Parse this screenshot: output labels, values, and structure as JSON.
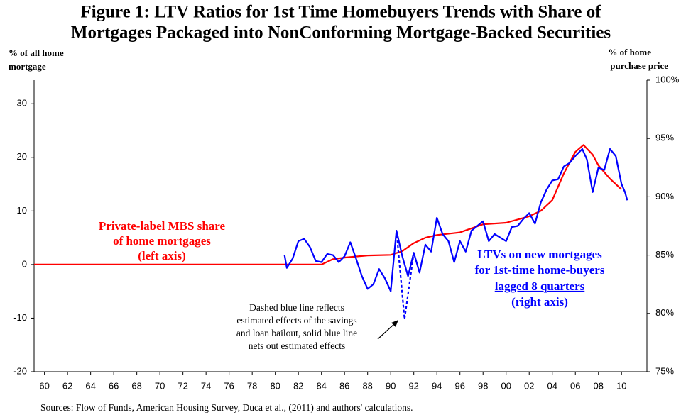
{
  "chart_data": {
    "type": "line",
    "title": [
      "Figure 1: LTV Ratios for 1st Time Homebuyers Trends with Share of",
      "Mortgages Packaged into NonConforming Mortgage-Backed Securities"
    ],
    "y_label": [
      "% of all home",
      "mortgage"
    ],
    "y2_label": [
      "% of home",
      "purchase price"
    ],
    "xlim": [
      1959.1,
      2012.2
    ],
    "xticks": [
      {
        "value": 1960,
        "label": "60"
      },
      {
        "value": 1962,
        "label": "62"
      },
      {
        "value": 1964,
        "label": "64"
      },
      {
        "value": 1966,
        "label": "66"
      },
      {
        "value": 1968,
        "label": "68"
      },
      {
        "value": 1970,
        "label": "70"
      },
      {
        "value": 1972,
        "label": "72"
      },
      {
        "value": 1974,
        "label": "74"
      },
      {
        "value": 1976,
        "label": "76"
      },
      {
        "value": 1978,
        "label": "78"
      },
      {
        "value": 1980,
        "label": "80"
      },
      {
        "value": 1982,
        "label": "82"
      },
      {
        "value": 1984,
        "label": "84"
      },
      {
        "value": 1986,
        "label": "86"
      },
      {
        "value": 1988,
        "label": "88"
      },
      {
        "value": 1990,
        "label": "90"
      },
      {
        "value": 1992,
        "label": "92"
      },
      {
        "value": 1994,
        "label": "94"
      },
      {
        "value": 1996,
        "label": "96"
      },
      {
        "value": 1998,
        "label": "98"
      },
      {
        "value": 2000,
        "label": "00"
      },
      {
        "value": 2002,
        "label": "02"
      },
      {
        "value": 2004,
        "label": "04"
      },
      {
        "value": 2006,
        "label": "06"
      },
      {
        "value": 2008,
        "label": "08"
      },
      {
        "value": 2010,
        "label": "10"
      }
    ],
    "ylim": [
      -20,
      34.4
    ],
    "yticks": [
      -20,
      -10,
      0,
      10,
      20,
      30
    ],
    "y2lim": [
      75,
      100
    ],
    "y2ticks": [
      {
        "value": 75,
        "label": "75%"
      },
      {
        "value": 80,
        "label": "80%"
      },
      {
        "value": 85,
        "label": "85%"
      },
      {
        "value": 90,
        "label": "90%"
      },
      {
        "value": 95,
        "label": "95%"
      },
      {
        "value": 100,
        "label": "100%"
      }
    ],
    "series": [
      {
        "color": "#ff0000",
        "axis": "y",
        "x": [
          1959.1,
          1984,
          1985,
          1986,
          1988,
          1990,
          1991,
          1992,
          1993,
          1994,
          1996,
          1998,
          2000,
          2002,
          2003,
          2004,
          2005,
          2006,
          2006.7,
          2007.5,
          2008,
          2009,
          2010
        ],
        "values": [
          0,
          0,
          1.0,
          1.3,
          1.7,
          1.8,
          2.5,
          4,
          5,
          5.5,
          6,
          7.5,
          7.8,
          9,
          10,
          12,
          17,
          21,
          22.3,
          20.5,
          18.5,
          16,
          14
        ]
      },
      {
        "color": "#0000ff",
        "axis": "y2",
        "x": [
          1980.8,
          1981,
          1981.5,
          1982,
          1982.5,
          1983,
          1983.5,
          1984,
          1984.5,
          1985,
          1985.5,
          1986,
          1986.5,
          1987,
          1987.5,
          1988,
          1988.5,
          1989,
          1989.5,
          1990,
          1990.5,
          1991,
          1991.5,
          1992,
          1992.5,
          1993,
          1993.5,
          1994,
          1994.5,
          1995,
          1995.5,
          1996,
          1996.5,
          1997,
          1997.5,
          1998,
          1998.5,
          1999,
          2000,
          2000.5,
          2001,
          2001.5,
          2002,
          2002.5,
          2003,
          2003.5,
          2004,
          2004.5,
          2005,
          2005.5,
          2006,
          2006.6,
          2007,
          2007.5,
          2008,
          2008.5,
          2009,
          2009.5,
          2010,
          2010.3,
          2010.5
        ],
        "values": [
          85.0,
          83.9,
          84.7,
          86.2,
          86.4,
          85.7,
          84.5,
          84.4,
          85.1,
          85.0,
          84.4,
          84.9,
          86.1,
          84.7,
          83.2,
          82.1,
          82.5,
          83.8,
          83.0,
          81.9,
          87.1,
          84.9,
          83.2,
          85.2,
          83.5,
          85.9,
          85.3,
          88.2,
          86.8,
          86.2,
          84.4,
          86.2,
          85.3,
          87.1,
          87.5,
          87.9,
          86.2,
          86.8,
          86.2,
          87.4,
          87.5,
          88.1,
          88.6,
          87.7,
          89.5,
          90.6,
          91.4,
          91.5,
          92.6,
          92.9,
          93.5,
          94.1,
          93.2,
          90.4,
          92.5,
          92.3,
          94.1,
          93.5,
          91.1,
          90.4,
          89.7
        ]
      },
      {
        "color": "#0000ff",
        "axis": "y2",
        "dashed": true,
        "x": [
          1990.5,
          1991.2,
          1992
        ],
        "values": [
          87.1,
          79.5,
          85.2
        ]
      }
    ],
    "annotations": {
      "mbs": [
        "Private-label MBS share",
        "of home mortgages",
        "(left axis)"
      ],
      "ltv": [
        "LTVs on new mortgages",
        "for 1st-time home-buyers",
        "lagged 8 quarters",
        "(right axis)"
      ],
      "note": [
        "Dashed blue line reflects",
        "estimated effects of the savings",
        "and loan bailout, solid blue line",
        "nets out estimated effects"
      ]
    },
    "source": "Sources:  Flow of Funds, American Housing Survey, Duca et al., (2011) and authors' calculations."
  }
}
